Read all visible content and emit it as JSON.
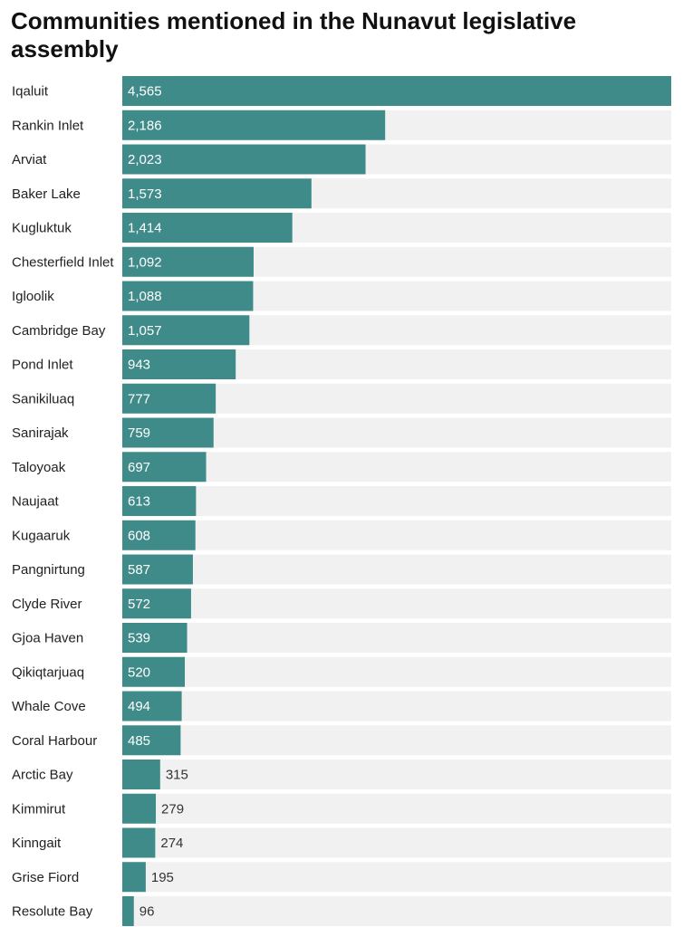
{
  "title": "Communities mentioned in the Nunavut legislative assembly",
  "colors": {
    "bar": "#3f8b8a",
    "track": "#f1f1f1",
    "value_inside": "#ffffff",
    "value_outside": "#333333"
  },
  "chart_data": {
    "type": "bar",
    "orientation": "horizontal",
    "title": "Communities mentioned in the Nunavut legislative assembly",
    "xlabel": "",
    "ylabel": "",
    "xlim": [
      0,
      4565
    ],
    "grid": false,
    "legend": "none",
    "categories": [
      "Iqaluit",
      "Rankin Inlet",
      "Arviat",
      "Baker Lake",
      "Kugluktuk",
      "Chesterfield Inlet",
      "Igloolik",
      "Cambridge Bay",
      "Pond Inlet",
      "Sanikiluaq",
      "Sanirajak",
      "Taloyoak",
      "Naujaat",
      "Kugaaruk",
      "Pangnirtung",
      "Clyde River",
      "Gjoa Haven",
      "Qikiqtarjuaq",
      "Whale Cove",
      "Coral Harbour",
      "Arctic Bay",
      "Kimmirut",
      "Kinngait",
      "Grise Fiord",
      "Resolute Bay"
    ],
    "values": [
      4565,
      2186,
      2023,
      1573,
      1414,
      1092,
      1088,
      1057,
      943,
      777,
      759,
      697,
      613,
      608,
      587,
      572,
      539,
      520,
      494,
      485,
      315,
      279,
      274,
      195,
      96
    ],
    "value_labels": [
      "4,565",
      "2,186",
      "2,023",
      "1,573",
      "1,414",
      "1,092",
      "1,088",
      "1,057",
      "943",
      "777",
      "759",
      "697",
      "613",
      "608",
      "587",
      "572",
      "539",
      "520",
      "494",
      "485",
      "315",
      "279",
      "274",
      "195",
      "96"
    ]
  }
}
